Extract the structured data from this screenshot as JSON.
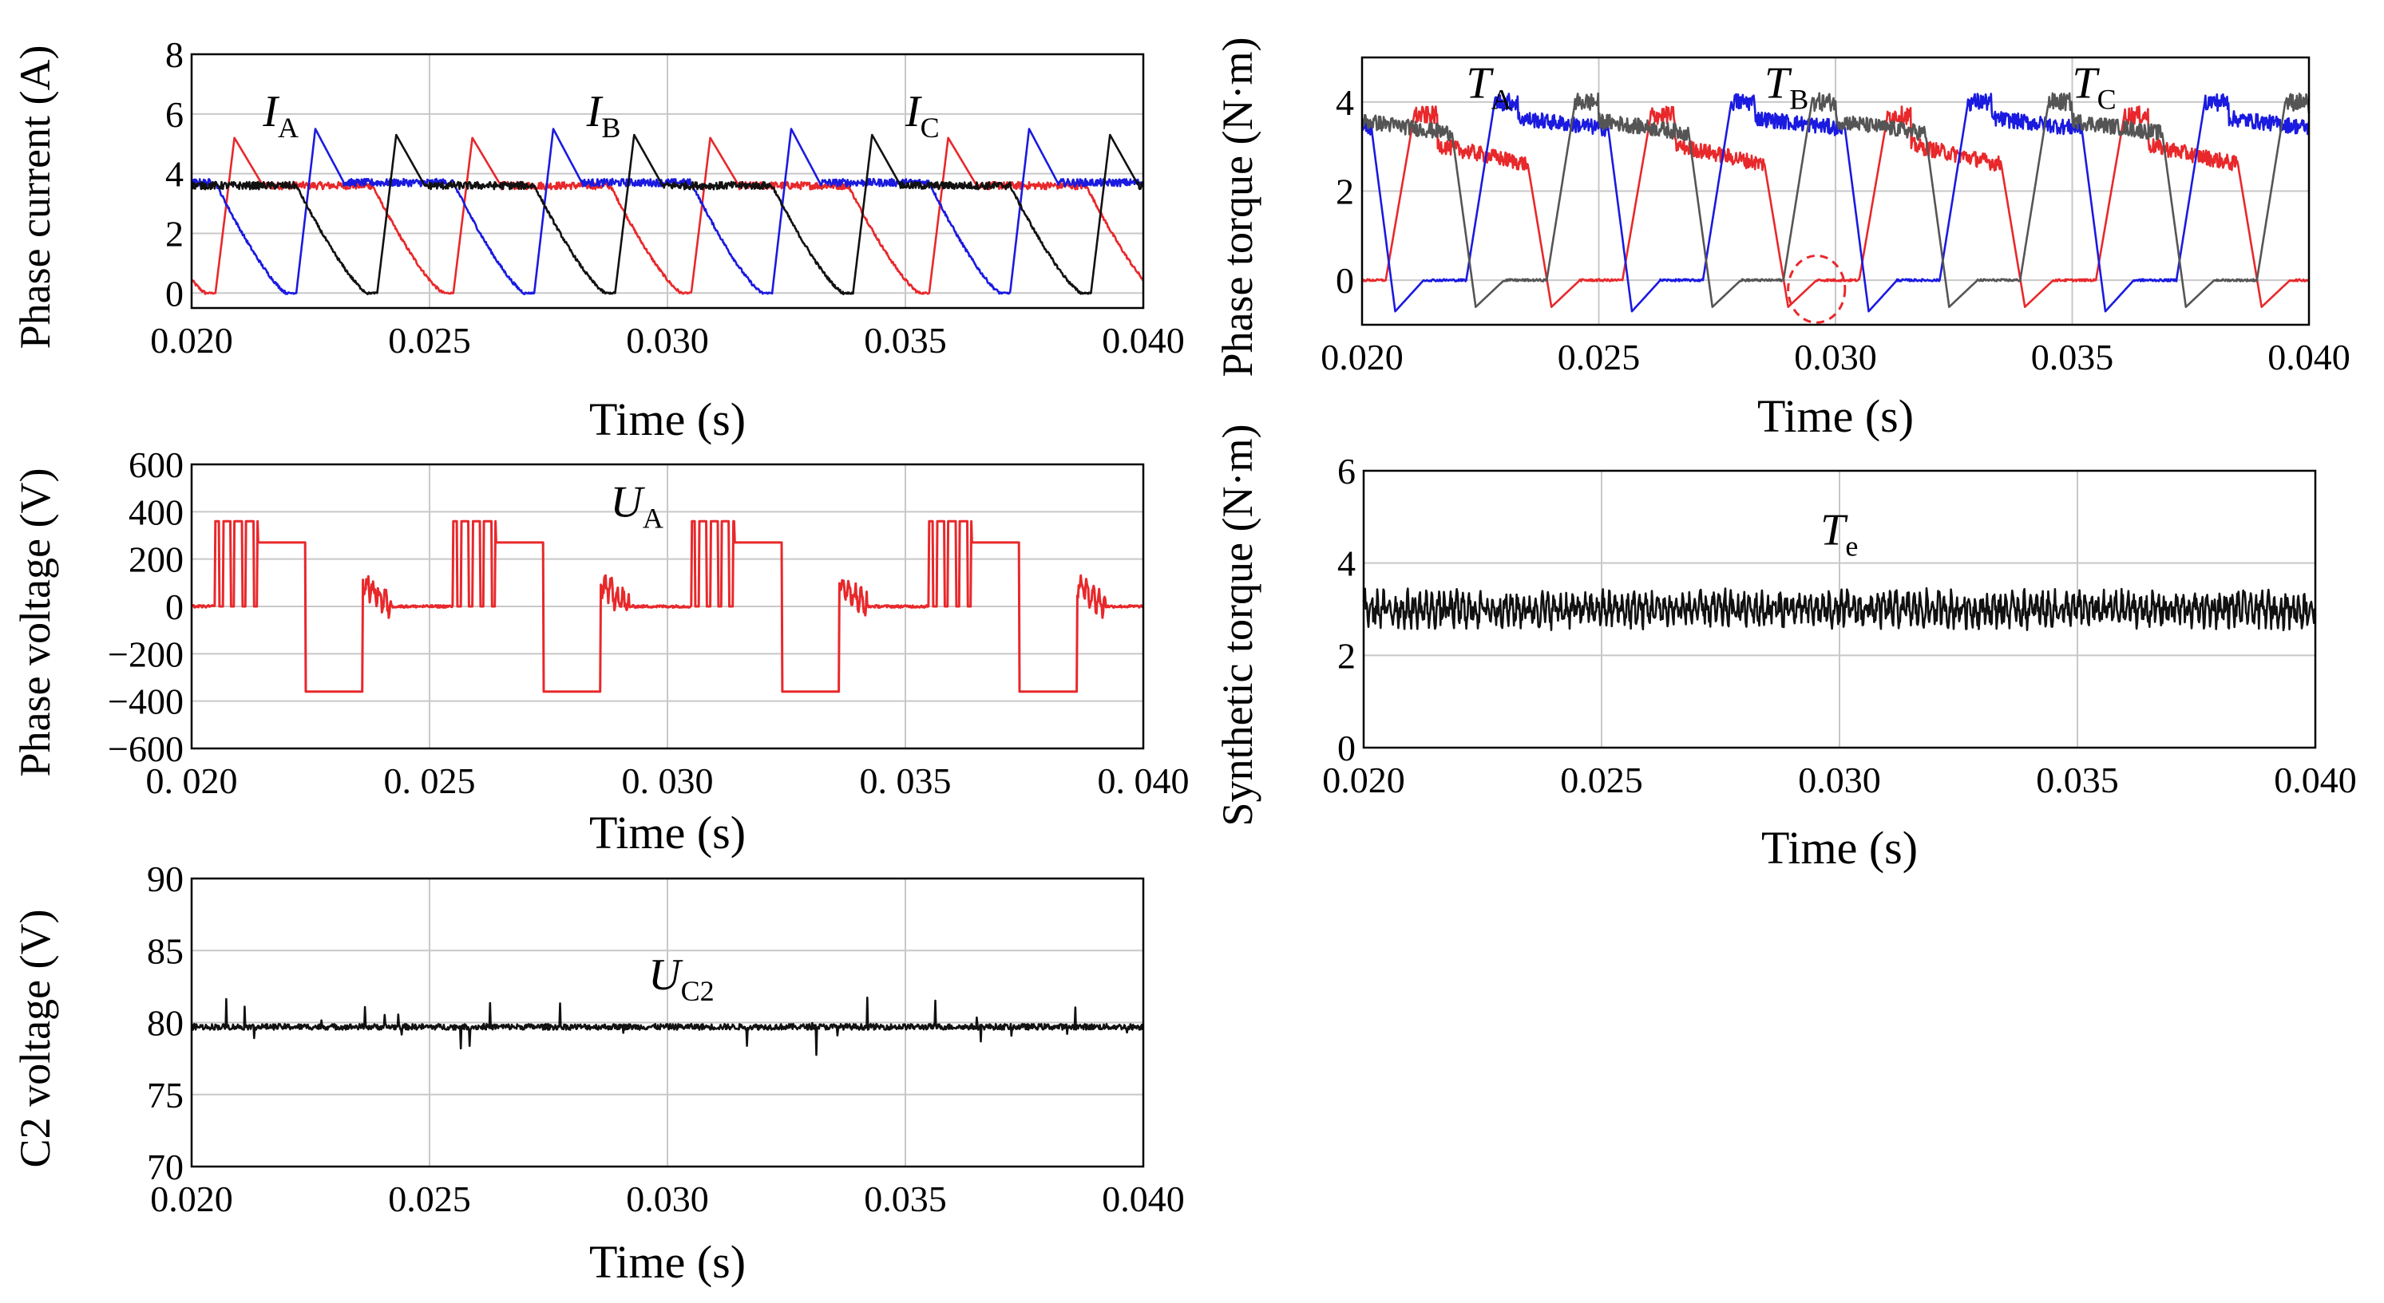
{
  "colors": {
    "phase_a": "#e8282b",
    "phase_b": "#1a1ae0",
    "phase_c": "#111111",
    "torque_c": "#555555",
    "grid": "#c8c8c8",
    "marker": "#e8282b"
  },
  "chart_data": [
    {
      "id": "phase-current",
      "type": "line",
      "xlabel": "Time (s)",
      "ylabel": "Phase current (A)",
      "xlim": [
        0.02,
        0.04
      ],
      "ylim": [
        -0.5,
        8
      ],
      "x_ticks": [
        "0.020",
        "0.025",
        "0.030",
        "0.035",
        "0.040"
      ],
      "x_tick_values": [
        0.02,
        0.025,
        0.03,
        0.035,
        0.04
      ],
      "y_ticks": [
        "0",
        "2",
        "4",
        "6",
        "8"
      ],
      "y_tick_values": [
        0,
        2,
        4,
        6,
        8
      ],
      "period": 0.005,
      "series": [
        {
          "name": "I_A",
          "label": "I",
          "sub": "A",
          "color": "#e8282b",
          "start": 0.0205,
          "rise": 0.0004,
          "peak": 5.2,
          "plateau": 3.6,
          "flat_end": 0.0033,
          "fall": 0.0015
        },
        {
          "name": "I_B",
          "label": "I",
          "sub": "B",
          "color": "#1a1ae0",
          "start": 0.0222,
          "rise": 0.0004,
          "peak": 5.5,
          "plateau": 3.7,
          "flat_end": 0.0033,
          "fall": 0.0015
        },
        {
          "name": "I_C",
          "label": "I",
          "sub": "C",
          "color": "#111111",
          "start": 0.0189,
          "rise": 0.0004,
          "peak": 5.3,
          "plateau": 3.6,
          "flat_end": 0.0033,
          "fall": 0.0015
        }
      ],
      "labels": [
        {
          "text": "I",
          "sub": "A",
          "x": 0.0215,
          "y": 5.6
        },
        {
          "text": "I",
          "sub": "B",
          "x": 0.0283,
          "y": 5.6
        },
        {
          "text": "I",
          "sub": "C",
          "x": 0.035,
          "y": 5.6
        }
      ]
    },
    {
      "id": "phase-torque",
      "type": "line",
      "xlabel": "Time (s)",
      "ylabel": "Phase torque (N·m)",
      "xlim": [
        0.02,
        0.04
      ],
      "ylim": [
        -1,
        5
      ],
      "x_ticks": [
        "0.020",
        "0.025",
        "0.030",
        "0.035",
        "0.040"
      ],
      "x_tick_values": [
        0.02,
        0.025,
        0.03,
        0.035,
        0.04
      ],
      "y_ticks": [
        "0",
        "2",
        "4"
      ],
      "y_tick_values": [
        0,
        2,
        4
      ],
      "period": 0.005,
      "series": [
        {
          "name": "T_A",
          "label": "T",
          "sub": "A",
          "color": "#e8282b",
          "start": 0.0205,
          "rise": 0.0006,
          "peak": 3.7,
          "plateau": 2.6,
          "flat_end": 0.003,
          "fall": 0.0005,
          "undershoot": -0.6
        },
        {
          "name": "T_B",
          "label": "T",
          "sub": "B",
          "color": "#1a1ae0",
          "start": 0.0222,
          "rise": 0.0006,
          "peak": 4.0,
          "plateau": 3.4,
          "flat_end": 0.003,
          "fall": 0.0005,
          "undershoot": -0.7
        },
        {
          "name": "T_C",
          "label": "T",
          "sub": "C",
          "color": "#555555",
          "start": 0.0189,
          "rise": 0.0006,
          "peak": 4.0,
          "plateau": 3.3,
          "flat_end": 0.003,
          "fall": 0.0005,
          "undershoot": -0.6
        }
      ],
      "labels": [
        {
          "text": "T",
          "sub": "A",
          "x": 0.0222,
          "y": 4.1
        },
        {
          "text": "T",
          "sub": "B",
          "x": 0.0285,
          "y": 4.1
        },
        {
          "text": "T",
          "sub": "C",
          "x": 0.035,
          "y": 4.1
        }
      ],
      "marker": {
        "x": 0.0296,
        "y": -0.2,
        "rx": 0.0006,
        "ry": 0.75
      }
    },
    {
      "id": "phase-voltage",
      "type": "line",
      "xlabel": "Time (s)",
      "ylabel": "Phase voltage (V)",
      "xlim": [
        0.02,
        0.04
      ],
      "ylim": [
        -600,
        600
      ],
      "x_ticks": [
        "0. 020",
        "0. 025",
        "0. 030",
        "0. 035",
        "0. 040"
      ],
      "x_tick_values": [
        0.02,
        0.025,
        0.03,
        0.035,
        0.04
      ],
      "y_ticks": [
        "600",
        "400",
        "200",
        "0",
        "−200",
        "−400",
        "−600"
      ],
      "y_tick_values": [
        600,
        400,
        200,
        0,
        -200,
        -400,
        -600
      ],
      "period": 0.005,
      "series": [
        {
          "name": "U_A",
          "color": "#e8282b",
          "start": 0.0205,
          "chop_end": 0.0214,
          "high": 360,
          "mid": 270,
          "pos_end": 0.0224,
          "neg": -360,
          "neg_end": 0.0236,
          "recover_end": 0.0242
        }
      ],
      "labels": [
        {
          "text": "U",
          "sub": "A",
          "x": 0.0288,
          "y": 380
        }
      ]
    },
    {
      "id": "synthetic-torque",
      "type": "line",
      "xlabel": "Time (s)",
      "ylabel": "Synthetic torque (N·m)",
      "xlim": [
        0.02,
        0.04
      ],
      "ylim": [
        0,
        6
      ],
      "x_ticks": [
        "0.020",
        "0.025",
        "0.030",
        "0.035",
        "0.040"
      ],
      "x_tick_values": [
        0.02,
        0.025,
        0.03,
        0.035,
        0.04
      ],
      "y_ticks": [
        "0",
        "2",
        "4",
        "6"
      ],
      "y_tick_values": [
        0,
        2,
        4,
        6
      ],
      "series": [
        {
          "name": "T_e",
          "color": "#111111",
          "mean": 3.0,
          "ripple": 0.35
        }
      ],
      "labels": [
        {
          "text": "T",
          "sub": "e",
          "x": 0.0296,
          "y": 4.4
        }
      ]
    },
    {
      "id": "c2-voltage",
      "type": "line",
      "xlabel": "Time (s)",
      "ylabel": "C2 voltage (V)",
      "xlim": [
        0.02,
        0.04
      ],
      "ylim": [
        70,
        90
      ],
      "x_ticks": [
        "0.020",
        "0.025",
        "0.030",
        "0.035",
        "0.040"
      ],
      "x_tick_values": [
        0.02,
        0.025,
        0.03,
        0.035,
        0.04
      ],
      "y_ticks": [
        "70",
        "75",
        "80",
        "85",
        "90"
      ],
      "y_tick_values": [
        70,
        75,
        80,
        85,
        90
      ],
      "series": [
        {
          "name": "U_C2",
          "color": "#111111",
          "mean": 79.7,
          "ripple": 0.4,
          "spike": 2.0
        }
      ],
      "labels": [
        {
          "text": "U",
          "sub": "C2",
          "x": 0.0296,
          "y": 82.3
        }
      ]
    }
  ]
}
